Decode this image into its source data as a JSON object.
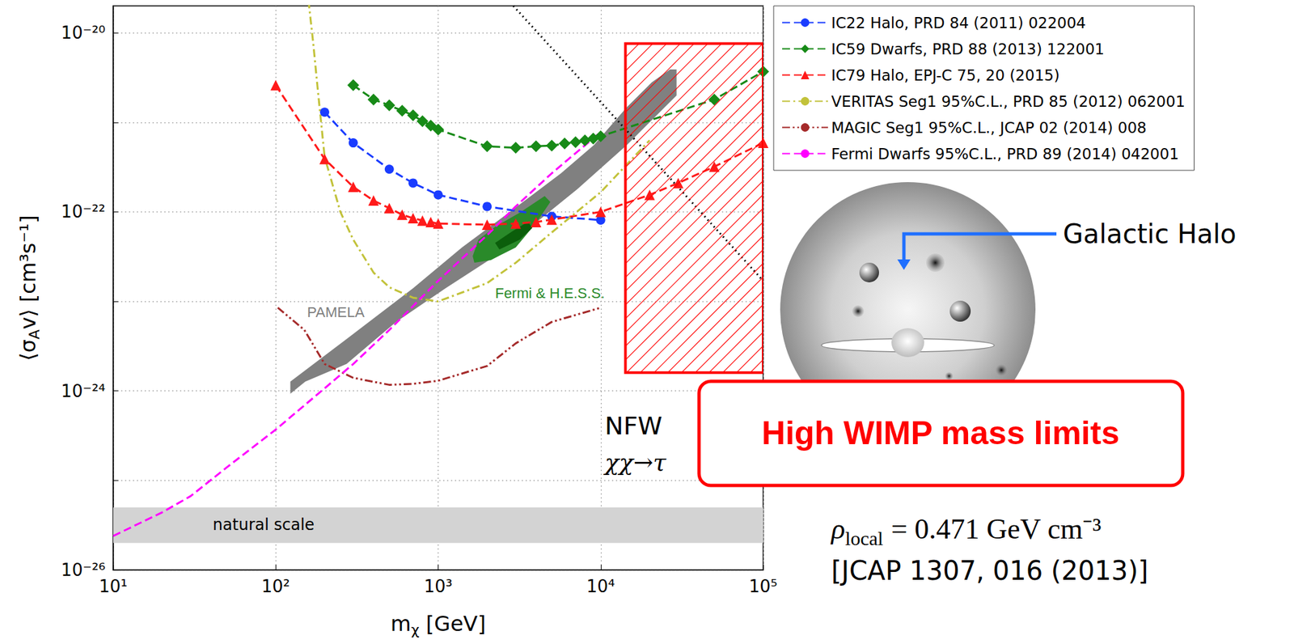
{
  "chart_data": {
    "type": "line",
    "xlabel": [
      "m",
      "χ",
      " [GeV]"
    ],
    "ylabel": [
      "⟨σ",
      "A",
      "v⟩ [cm³s⁻¹]"
    ],
    "log": true,
    "grid": true,
    "legend": "right",
    "xlim": [
      10,
      100000
    ],
    "xticks": [
      {
        "value": 10,
        "label": "10¹"
      },
      {
        "value": 100,
        "label": "10²"
      },
      {
        "value": 1000,
        "label": "10³"
      },
      {
        "value": 10000,
        "label": "10⁴"
      },
      {
        "value": 100000,
        "label": "10⁵"
      }
    ],
    "ylim": [
      1e-26,
      2e-20
    ],
    "yticks": [
      {
        "value": 1e-26,
        "label": "10⁻²⁶"
      },
      {
        "value": 1e-24,
        "label": "10⁻²⁴"
      },
      {
        "value": 1e-22,
        "label": "10⁻²²"
      },
      {
        "value": 1e-20,
        "label": "10⁻²⁰"
      }
    ],
    "series": [
      {
        "name": "IC22 Halo, PRD 84 (2011) 022004",
        "color": "#1a3cff",
        "marker": "circle",
        "line_style": "dashed",
        "x": [
          200,
          300,
          500,
          700,
          1000,
          2000,
          5000,
          10000
        ],
        "values": [
          1.3e-21,
          5.9e-22,
          3e-22,
          2.1e-22,
          1.55e-22,
          1.15e-22,
          8.9e-23,
          8.1e-23
        ]
      },
      {
        "name": "IC59 Dwarfs, PRD 88 (2013) 122001",
        "color": "#178a17",
        "marker": "diamond",
        "line_style": "dashed",
        "x": [
          300,
          400,
          500,
          600,
          700,
          800,
          900,
          1000,
          2000,
          3000,
          4000,
          5000,
          6000,
          7000,
          8000,
          9000,
          10000,
          50000,
          100000
        ],
        "values": [
          2.6e-21,
          1.8e-21,
          1.55e-21,
          1.35e-21,
          1.2e-21,
          1.03e-21,
          9.2e-22,
          8.3e-22,
          5.4e-22,
          5.2e-22,
          5.4e-22,
          5.5e-22,
          5.8e-22,
          6e-22,
          6.3e-22,
          6.6e-22,
          7e-22,
          1.8e-21,
          3.7e-21
        ]
      },
      {
        "name": "IC79 Halo, EPJ-C 75, 20 (2015)",
        "color": "#ff1a1a",
        "marker": "triangle",
        "line_style": "dashed",
        "x": [
          100,
          200,
          300,
          400,
          500,
          600,
          700,
          800,
          900,
          1000,
          2000,
          3000,
          4000,
          5000,
          10000,
          20000,
          30000,
          50000,
          100000
        ],
        "values": [
          2.6e-21,
          3.9e-22,
          1.9e-22,
          1.34e-22,
          1.1e-22,
          9.3e-23,
          8.5e-23,
          8e-23,
          7.7e-23,
          7.4e-23,
          7.2e-23,
          7.4e-23,
          7.7e-23,
          8.2e-23,
          1e-22,
          1.55e-22,
          2.1e-22,
          3.2e-22,
          5.9e-22
        ]
      },
      {
        "name": "VERITAS Seg1 95%C.L., PRD 85 (2012) 062001",
        "color": "#c2c23a",
        "marker": "none",
        "line_style": "dashdot",
        "x": [
          155,
          170,
          180,
          200,
          250,
          300,
          400,
          500,
          700,
          1000,
          2000,
          3000,
          5000,
          10000,
          20000
        ],
        "values": [
          3.5e-20,
          7.8e-21,
          2.7e-21,
          4.1e-22,
          1e-22,
          4.9e-23,
          2.1e-23,
          1.44e-23,
          1.1e-23,
          1e-23,
          1.6e-23,
          2.7e-23,
          5.9e-23,
          1.66e-22,
          6.3e-22
        ]
      },
      {
        "name": "MAGIC Seg1 95%C.L., JCAP 02 (2014) 008",
        "color": "#a52a2a",
        "marker": "none",
        "line_style": "dashdotdot",
        "x": [
          103,
          150,
          200,
          300,
          500,
          700,
          1000,
          2000,
          3000,
          5000,
          10000
        ],
        "values": [
          8.5e-24,
          4.8e-24,
          2e-24,
          1.4e-24,
          1.17e-24,
          1.2e-24,
          1.3e-24,
          1.9e-24,
          3.4e-24,
          5.9e-24,
          8.5e-24
        ]
      },
      {
        "name": "Fermi Dwarfs 95%C.L., PRD 89 (2014) 042001",
        "color": "#ff00ff",
        "marker": "none",
        "line_style": "dashed",
        "x": [
          10,
          20,
          30,
          50,
          100,
          200,
          300,
          500,
          1000,
          2000,
          3000,
          5000,
          10000
        ],
        "values": [
          2.4e-26,
          4.4e-26,
          6.7e-26,
          1.4e-25,
          3.7e-25,
          1.07e-24,
          2e-24,
          4.8e-24,
          1.7e-23,
          5.5e-23,
          1.15e-22,
          2.7e-22,
          7.8e-22
        ]
      },
      {
        "color": "#000000",
        "marker": "none",
        "line_style": "dotted",
        "x": [
          2900,
          100000
        ],
        "values": [
          2e-20,
          1.7e-23
        ]
      }
    ],
    "regions": [
      {
        "label": "PAMELA",
        "color": "#808080",
        "label_x": 156,
        "label_y": 7.6e-24,
        "points": [
          [
            123,
            1.27e-24
          ],
          [
            273,
            3.8e-24
          ],
          [
            700,
            1.4e-23
          ],
          [
            1400,
            4e-23
          ],
          [
            2800,
            1.02e-22
          ],
          [
            5700,
            2.7e-22
          ],
          [
            9100,
            5.6e-22
          ],
          [
            14500,
            1.48e-21
          ],
          [
            20600,
            2.8e-21
          ],
          [
            26700,
            3.9e-21
          ],
          [
            29300,
            3.9e-21
          ],
          [
            29300,
            2e-21
          ],
          [
            14500,
            5.6e-22
          ],
          [
            7200,
            1.8e-22
          ],
          [
            4000,
            7.6e-23
          ],
          [
            2240,
            3.2e-23
          ],
          [
            1110,
            1.4e-23
          ],
          [
            550,
            5.9e-24
          ],
          [
            273,
            2e-24
          ],
          [
            152,
            1.27e-24
          ],
          [
            123,
            9.3e-25
          ]
        ]
      },
      {
        "label": "Fermi & H.E.S.S.",
        "color": "#2a8a2a",
        "label_x": 2240,
        "label_y": 1.23e-23,
        "points": [
          [
            1630,
            3.2e-23
          ],
          [
            1770,
            4.9e-23
          ],
          [
            2240,
            6.8e-23
          ],
          [
            3180,
            9.8e-23
          ],
          [
            4520,
            1.5e-22
          ],
          [
            4900,
            1.29e-22
          ],
          [
            4020,
            7.6e-23
          ],
          [
            3000,
            4e-23
          ],
          [
            2110,
            2.9e-23
          ],
          [
            1670,
            2.7e-23
          ]
        ]
      },
      {
        "color": "#0b5e0b",
        "points": [
          [
            2240,
            4.5e-23
          ],
          [
            2830,
            6e-23
          ],
          [
            3570,
            7.8e-23
          ],
          [
            3790,
            6.6e-23
          ],
          [
            3180,
            4.9e-23
          ],
          [
            2380,
            3.8e-23
          ]
        ]
      }
    ],
    "band": {
      "label": "natural scale",
      "color": "#d3d3d3",
      "x": [
        10,
        100000
      ],
      "y": [
        2e-26,
        5e-26
      ],
      "label_x": 41,
      "label_y": 3.2e-26
    },
    "box": {
      "color": "#ff0000",
      "x": [
        14200,
        100000
      ],
      "y": [
        1.6e-24,
        7.6e-21
      ]
    },
    "annotations": [
      {
        "text": "NFW",
        "x": 10600,
        "y": 4.1e-25
      },
      {
        "text": "χχ→τ",
        "x": 10600,
        "y": 1.6e-25
      }
    ]
  },
  "side_panel": {
    "halo_label": "Galactic Halo",
    "callout": "High WIMP mass limits",
    "rho_local": {
      "symbol": "ρ",
      "subscript": "local",
      "rest": "= 0.471 GeV cm⁻³"
    },
    "reference": "[JCAP 1307, 016 (2013)]"
  }
}
